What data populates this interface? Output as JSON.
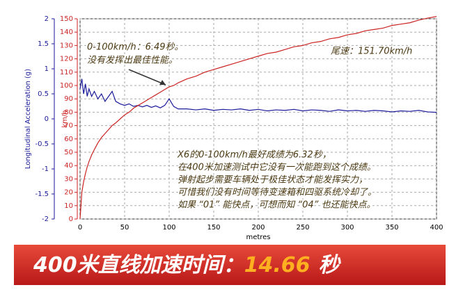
{
  "chart_data": {
    "type": "line",
    "xlabel": "metres",
    "ylabel": "Longitudinal Acceleration (g)",
    "y2label": "km/h",
    "x": [
      0,
      2,
      4,
      6,
      8,
      10,
      13,
      16,
      20,
      24,
      28,
      32,
      36,
      40,
      45,
      50,
      55,
      60,
      65,
      70,
      75,
      80,
      85,
      90,
      95,
      100,
      105,
      110,
      120,
      130,
      140,
      150,
      160,
      170,
      180,
      190,
      200,
      210,
      220,
      230,
      240,
      250,
      260,
      270,
      280,
      290,
      300,
      310,
      320,
      330,
      340,
      350,
      360,
      370,
      380,
      390,
      400
    ],
    "series": [
      {
        "name": "Longitudinal Acceleration (g)",
        "color": "#1a1a9a",
        "axis": "y",
        "values": [
          0.6,
          0.8,
          0.5,
          0.7,
          0.45,
          0.6,
          0.45,
          0.55,
          0.4,
          0.5,
          0.35,
          0.45,
          0.55,
          0.35,
          0.3,
          0.27,
          0.3,
          0.25,
          0.27,
          0.24,
          0.27,
          0.23,
          0.26,
          0.22,
          0.27,
          0.4,
          0.25,
          0.2,
          0.2,
          0.18,
          0.2,
          0.17,
          0.19,
          0.18,
          0.2,
          0.17,
          0.19,
          0.16,
          0.18,
          0.17,
          0.19,
          0.16,
          0.18,
          0.17,
          0.15,
          0.18,
          0.16,
          0.17,
          0.15,
          0.17,
          0.16,
          0.14,
          0.16,
          0.15,
          0.17,
          0.14,
          0.13
        ]
      },
      {
        "name": "km/h",
        "color": "#cc2222",
        "axis": "y2",
        "values": [
          0,
          20,
          28,
          34,
          39,
          43,
          48,
          52,
          57,
          61,
          64,
          67,
          70,
          72,
          75,
          78,
          80,
          83,
          85,
          87,
          89,
          91,
          93,
          95,
          97,
          99,
          100,
          102,
          105,
          107,
          110,
          112,
          114,
          116,
          118,
          120,
          122,
          124,
          125,
          127,
          129,
          130,
          132,
          133,
          135,
          136,
          138,
          139,
          141,
          142,
          143,
          145,
          146,
          147,
          149,
          150.5,
          151.7
        ]
      }
    ],
    "xlim": [
      0,
      400
    ],
    "xticks": [
      0,
      50,
      100,
      150,
      200,
      250,
      300,
      350,
      400
    ],
    "ylim": [
      -2,
      2
    ],
    "yticks": [
      2,
      1.5,
      1,
      0.5,
      0,
      -0.5,
      -1,
      -1.5,
      -2
    ],
    "y2lim": [
      0,
      150
    ],
    "y2ticks": [
      0,
      10,
      20,
      30,
      40,
      50,
      60,
      70,
      80,
      90,
      100,
      110,
      120,
      130,
      140,
      150
    ],
    "grid": true,
    "annotations": [
      "0-100km/h：6.49秒。",
      "没有发挥出最佳性能。",
      "尾速：151.70km/h",
      "X6的0-100km/h最好成绩为6.32秒，",
      "在400米加速测试中它没有一次能跑到这个成绩。",
      "弹射起步需要车辆处于极佳状态才能发挥实力，",
      "可惜我们没有时间等待变速箱和四驱系统冷却了。",
      "如果 “01” 能快点，可想而知 “04” 也还能快点。"
    ],
    "banner": {
      "label": "400米直线加速时间：",
      "value": "14.66",
      "unit": "秒"
    }
  }
}
